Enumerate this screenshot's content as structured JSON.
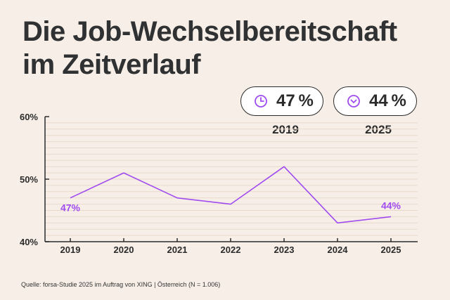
{
  "title_line1": "Die Job-Wechselbereitschaft",
  "title_line2": "im Zeitverlauf",
  "highlights": [
    {
      "icon": "clock-icon",
      "value": "47 %",
      "year": "2019"
    },
    {
      "icon": "chevron-down-circle-icon",
      "value": "44 %",
      "year": "2025"
    }
  ],
  "source": "Quelle: forsa-Studie 2025 im Auftrag von XING | Österreich (N = 1.006)",
  "colors": {
    "line": "#a04bf0",
    "background": "#f7efe7",
    "axis": "#2b2b2b"
  },
  "chart_data": {
    "type": "line",
    "x": [
      "2019",
      "2020",
      "2021",
      "2022",
      "2023",
      "2024",
      "2025"
    ],
    "series": [
      {
        "values": [
          47,
          51,
          47,
          46,
          52,
          43,
          44
        ]
      }
    ],
    "ylim": [
      40,
      60
    ],
    "yticks": [
      40,
      50,
      60
    ],
    "ytick_labels": [
      "40%",
      "50%",
      "60%"
    ],
    "data_labels": [
      {
        "index": 0,
        "text": "47%"
      },
      {
        "index": 6,
        "text": "44%"
      }
    ],
    "grid": true
  }
}
